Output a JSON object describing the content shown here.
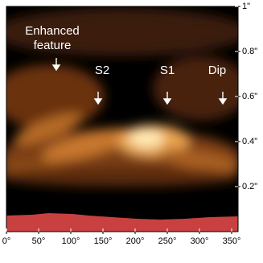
{
  "chart_data": {
    "type": "image",
    "annotations": [
      "Enhanced feature",
      "S2",
      "S1",
      "Dip"
    ],
    "xlim": [
      0,
      360
    ],
    "ylim": [
      0,
      1
    ],
    "xticks": [
      {
        "value": 0,
        "label": "0°"
      },
      {
        "value": 50,
        "label": "50°"
      },
      {
        "value": 100,
        "label": "100°"
      },
      {
        "value": 150,
        "label": "150°"
      },
      {
        "value": 200,
        "label": "200°"
      },
      {
        "value": 250,
        "label": "250°"
      },
      {
        "value": 300,
        "label": "300°"
      },
      {
        "value": 350,
        "label": "350°"
      }
    ],
    "yticks": [
      {
        "value": 0.2,
        "label": "0.2\""
      },
      {
        "value": 0.4,
        "label": "0.4\""
      },
      {
        "value": 0.6,
        "label": "0.6\""
      },
      {
        "value": 0.8,
        "label": "0.8\""
      },
      {
        "value": 1,
        "label": "1\""
      }
    ]
  }
}
